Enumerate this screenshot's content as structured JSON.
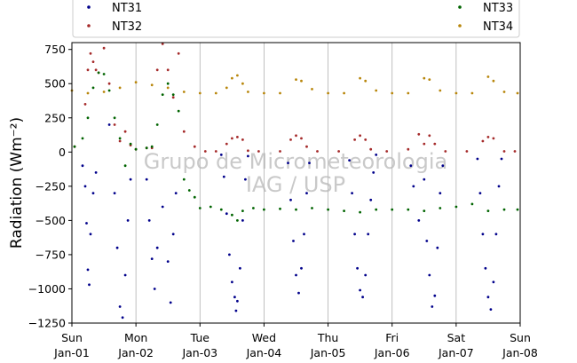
{
  "chart_data": {
    "type": "scatter",
    "title": "",
    "xlabel": "",
    "ylabel": "Radiation (Wm⁻²)",
    "ylim": [
      -1250,
      800
    ],
    "yticks": [
      -1250,
      -1000,
      -750,
      -500,
      -250,
      0,
      250,
      500,
      750
    ],
    "yticklabels": [
      "−1250",
      "−1000",
      "−750",
      "−500",
      "−250",
      "0",
      "250",
      "500",
      "750"
    ],
    "xlim": [
      "2023-01-01",
      "2023-01-08"
    ],
    "xticks": [
      {
        "day": "Sun",
        "date": "Jan-01"
      },
      {
        "day": "Mon",
        "date": "Jan-02"
      },
      {
        "day": "Tue",
        "date": "Jan-03"
      },
      {
        "day": "Wed",
        "date": "Jan-04"
      },
      {
        "day": "Thu",
        "date": "Jan-05"
      },
      {
        "day": "Fri",
        "date": "Jan-06"
      },
      {
        "day": "Sat",
        "date": "Jan-07"
      },
      {
        "day": "Sun",
        "date": "Jan-08"
      }
    ],
    "grid": "vertical",
    "legend_placement": "top",
    "watermark": [
      "Grupo de Micrometeorologia",
      "IAG / USP"
    ],
    "series": [
      {
        "name": "NT31",
        "color": "#00008b",
        "points": [
          [
            "2023-01-01T04:00",
            -100
          ],
          [
            "2023-01-01T05:00",
            -250
          ],
          [
            "2023-01-01T05:30",
            -520
          ],
          [
            "2023-01-01T06:00",
            -860
          ],
          [
            "2023-01-01T06:30",
            -970
          ],
          [
            "2023-01-01T07:00",
            -600
          ],
          [
            "2023-01-01T08:00",
            -300
          ],
          [
            "2023-01-01T09:00",
            -150
          ],
          [
            "2023-01-01T14:00",
            200
          ],
          [
            "2023-01-01T16:00",
            -300
          ],
          [
            "2023-01-01T17:00",
            -700
          ],
          [
            "2023-01-01T18:00",
            -1130
          ],
          [
            "2023-01-01T19:00",
            -1210
          ],
          [
            "2023-01-01T20:00",
            -900
          ],
          [
            "2023-01-01T21:00",
            -500
          ],
          [
            "2023-01-01T22:00",
            -200
          ],
          [
            "2023-01-02T04:00",
            -200
          ],
          [
            "2023-01-02T05:00",
            -500
          ],
          [
            "2023-01-02T06:00",
            -780
          ],
          [
            "2023-01-02T07:00",
            -1000
          ],
          [
            "2023-01-02T08:00",
            -700
          ],
          [
            "2023-01-02T10:00",
            -400
          ],
          [
            "2023-01-02T12:00",
            -800
          ],
          [
            "2023-01-02T13:00",
            -1100
          ],
          [
            "2023-01-02T14:00",
            -600
          ],
          [
            "2023-01-02T15:00",
            -300
          ],
          [
            "2023-01-03T08:00",
            -20
          ],
          [
            "2023-01-03T09:00",
            -180
          ],
          [
            "2023-01-03T10:00",
            -450
          ],
          [
            "2023-01-03T11:00",
            -750
          ],
          [
            "2023-01-03T12:00",
            -950
          ],
          [
            "2023-01-03T13:00",
            -1060
          ],
          [
            "2023-01-03T13:30",
            -1160
          ],
          [
            "2023-01-03T14:00",
            -1090
          ],
          [
            "2023-01-03T15:00",
            -850
          ],
          [
            "2023-01-03T16:00",
            -500
          ],
          [
            "2023-01-03T17:00",
            -200
          ],
          [
            "2023-01-03T18:00",
            -30
          ],
          [
            "2023-01-04T09:00",
            -80
          ],
          [
            "2023-01-04T10:00",
            -350
          ],
          [
            "2023-01-04T11:00",
            -650
          ],
          [
            "2023-01-04T12:00",
            -900
          ],
          [
            "2023-01-04T13:00",
            -1030
          ],
          [
            "2023-01-04T14:00",
            -850
          ],
          [
            "2023-01-04T15:00",
            -600
          ],
          [
            "2023-01-04T16:00",
            -300
          ],
          [
            "2023-01-04T17:00",
            -80
          ],
          [
            "2023-01-05T08:00",
            -60
          ],
          [
            "2023-01-05T09:00",
            -300
          ],
          [
            "2023-01-05T10:00",
            -600
          ],
          [
            "2023-01-05T11:00",
            -850
          ],
          [
            "2023-01-05T12:00",
            -1010
          ],
          [
            "2023-01-05T13:00",
            -1060
          ],
          [
            "2023-01-05T14:00",
            -900
          ],
          [
            "2023-01-05T15:00",
            -600
          ],
          [
            "2023-01-05T16:00",
            -350
          ],
          [
            "2023-01-05T17:00",
            -150
          ],
          [
            "2023-01-05T18:00",
            -20
          ],
          [
            "2023-01-06T07:00",
            -100
          ],
          [
            "2023-01-06T08:00",
            -250
          ],
          [
            "2023-01-06T10:00",
            -500
          ],
          [
            "2023-01-06T12:00",
            -200
          ],
          [
            "2023-01-06T13:00",
            -650
          ],
          [
            "2023-01-06T14:00",
            -900
          ],
          [
            "2023-01-06T15:00",
            -1130
          ],
          [
            "2023-01-06T16:00",
            -1050
          ],
          [
            "2023-01-06T17:00",
            -700
          ],
          [
            "2023-01-06T18:00",
            -300
          ],
          [
            "2023-01-06T19:00",
            -100
          ],
          [
            "2023-01-07T08:00",
            -50
          ],
          [
            "2023-01-07T09:00",
            -300
          ],
          [
            "2023-01-07T10:00",
            -600
          ],
          [
            "2023-01-07T11:00",
            -850
          ],
          [
            "2023-01-07T12:00",
            -1060
          ],
          [
            "2023-01-07T13:00",
            -1150
          ],
          [
            "2023-01-07T14:00",
            -950
          ],
          [
            "2023-01-07T15:00",
            -600
          ],
          [
            "2023-01-07T16:00",
            -250
          ],
          [
            "2023-01-07T17:00",
            -50
          ]
        ]
      },
      {
        "name": "NT32",
        "color": "#a52a2a",
        "points": [
          [
            "2023-01-01T01:00",
            40
          ],
          [
            "2023-01-01T05:00",
            350
          ],
          [
            "2023-01-01T06:00",
            600
          ],
          [
            "2023-01-01T07:00",
            720
          ],
          [
            "2023-01-01T08:00",
            660
          ],
          [
            "2023-01-01T09:00",
            600
          ],
          [
            "2023-01-01T10:00",
            580
          ],
          [
            "2023-01-01T12:00",
            760
          ],
          [
            "2023-01-01T14:00",
            500
          ],
          [
            "2023-01-01T16:00",
            200
          ],
          [
            "2023-01-01T18:00",
            80
          ],
          [
            "2023-01-01T20:00",
            150
          ],
          [
            "2023-01-01T22:00",
            50
          ],
          [
            "2023-01-02T00:00",
            20
          ],
          [
            "2023-01-02T04:00",
            30
          ],
          [
            "2023-01-02T06:00",
            30
          ],
          [
            "2023-01-02T08:00",
            600
          ],
          [
            "2023-01-02T10:00",
            790
          ],
          [
            "2023-01-02T12:00",
            600
          ],
          [
            "2023-01-02T14:00",
            400
          ],
          [
            "2023-01-02T16:00",
            720
          ],
          [
            "2023-01-02T18:00",
            150
          ],
          [
            "2023-01-02T22:00",
            40
          ],
          [
            "2023-01-03T02:00",
            5
          ],
          [
            "2023-01-03T06:00",
            5
          ],
          [
            "2023-01-03T10:00",
            60
          ],
          [
            "2023-01-03T12:00",
            100
          ],
          [
            "2023-01-03T14:00",
            110
          ],
          [
            "2023-01-03T16:00",
            90
          ],
          [
            "2023-01-03T18:00",
            10
          ],
          [
            "2023-01-03T22:00",
            5
          ],
          [
            "2023-01-04T06:00",
            5
          ],
          [
            "2023-01-04T10:00",
            90
          ],
          [
            "2023-01-04T12:00",
            120
          ],
          [
            "2023-01-04T14:00",
            100
          ],
          [
            "2023-01-04T16:00",
            40
          ],
          [
            "2023-01-04T20:00",
            5
          ],
          [
            "2023-01-05T04:00",
            5
          ],
          [
            "2023-01-05T10:00",
            90
          ],
          [
            "2023-01-05T12:00",
            120
          ],
          [
            "2023-01-05T14:00",
            90
          ],
          [
            "2023-01-05T16:00",
            20
          ],
          [
            "2023-01-05T22:00",
            5
          ],
          [
            "2023-01-06T06:00",
            20
          ],
          [
            "2023-01-06T10:00",
            130
          ],
          [
            "2023-01-06T12:00",
            60
          ],
          [
            "2023-01-06T14:00",
            120
          ],
          [
            "2023-01-06T16:00",
            60
          ],
          [
            "2023-01-06T20:00",
            5
          ],
          [
            "2023-01-07T04:00",
            5
          ],
          [
            "2023-01-07T10:00",
            80
          ],
          [
            "2023-01-07T12:00",
            110
          ],
          [
            "2023-01-07T14:00",
            100
          ],
          [
            "2023-01-07T18:00",
            5
          ],
          [
            "2023-01-07T22:00",
            5
          ]
        ]
      },
      {
        "name": "NT33",
        "color": "#006400",
        "points": [
          [
            "2023-01-01T01:00",
            40
          ],
          [
            "2023-01-01T04:00",
            100
          ],
          [
            "2023-01-01T06:00",
            250
          ],
          [
            "2023-01-01T08:00",
            470
          ],
          [
            "2023-01-01T10:00",
            580
          ],
          [
            "2023-01-01T12:00",
            570
          ],
          [
            "2023-01-01T14:00",
            450
          ],
          [
            "2023-01-01T16:00",
            250
          ],
          [
            "2023-01-01T18:00",
            100
          ],
          [
            "2023-01-01T20:00",
            -100
          ],
          [
            "2023-01-01T22:00",
            60
          ],
          [
            "2023-01-02T00:00",
            20
          ],
          [
            "2023-01-02T04:00",
            30
          ],
          [
            "2023-01-02T06:00",
            40
          ],
          [
            "2023-01-02T08:00",
            200
          ],
          [
            "2023-01-02T10:00",
            420
          ],
          [
            "2023-01-02T12:00",
            500
          ],
          [
            "2023-01-02T14:00",
            420
          ],
          [
            "2023-01-02T16:00",
            300
          ],
          [
            "2023-01-02T18:00",
            -200
          ],
          [
            "2023-01-02T20:00",
            -280
          ],
          [
            "2023-01-02T22:00",
            -330
          ],
          [
            "2023-01-03T00:00",
            -410
          ],
          [
            "2023-01-03T04:00",
            -400
          ],
          [
            "2023-01-03T08:00",
            -420
          ],
          [
            "2023-01-03T12:00",
            -460
          ],
          [
            "2023-01-03T14:00",
            -500
          ],
          [
            "2023-01-03T16:00",
            -430
          ],
          [
            "2023-01-03T20:00",
            -410
          ],
          [
            "2023-01-04T00:00",
            -420
          ],
          [
            "2023-01-04T06:00",
            -415
          ],
          [
            "2023-01-04T12:00",
            -420
          ],
          [
            "2023-01-04T18:00",
            -410
          ],
          [
            "2023-01-05T00:00",
            -420
          ],
          [
            "2023-01-05T06:00",
            -430
          ],
          [
            "2023-01-05T12:00",
            -440
          ],
          [
            "2023-01-05T18:00",
            -420
          ],
          [
            "2023-01-06T00:00",
            -420
          ],
          [
            "2023-01-06T06:00",
            -420
          ],
          [
            "2023-01-06T12:00",
            -430
          ],
          [
            "2023-01-06T18:00",
            -410
          ],
          [
            "2023-01-07T00:00",
            -400
          ],
          [
            "2023-01-07T06:00",
            -380
          ],
          [
            "2023-01-07T12:00",
            -430
          ],
          [
            "2023-01-07T18:00",
            -420
          ],
          [
            "2023-01-07T23:00",
            -420
          ]
        ]
      },
      {
        "name": "NT34",
        "color": "#b8860b",
        "points": [
          [
            "2023-01-01T00:00",
            450
          ],
          [
            "2023-01-01T06:00",
            430
          ],
          [
            "2023-01-01T12:00",
            440
          ],
          [
            "2023-01-01T18:00",
            470
          ],
          [
            "2023-01-02T00:00",
            510
          ],
          [
            "2023-01-02T06:00",
            490
          ],
          [
            "2023-01-02T12:00",
            470
          ],
          [
            "2023-01-02T18:00",
            440
          ],
          [
            "2023-01-03T00:00",
            430
          ],
          [
            "2023-01-03T06:00",
            430
          ],
          [
            "2023-01-03T10:00",
            470
          ],
          [
            "2023-01-03T12:00",
            540
          ],
          [
            "2023-01-03T14:00",
            560
          ],
          [
            "2023-01-03T16:00",
            500
          ],
          [
            "2023-01-03T18:00",
            440
          ],
          [
            "2023-01-04T00:00",
            430
          ],
          [
            "2023-01-04T06:00",
            430
          ],
          [
            "2023-01-04T12:00",
            530
          ],
          [
            "2023-01-04T14:00",
            520
          ],
          [
            "2023-01-04T18:00",
            460
          ],
          [
            "2023-01-05T00:00",
            430
          ],
          [
            "2023-01-05T06:00",
            430
          ],
          [
            "2023-01-05T12:00",
            540
          ],
          [
            "2023-01-05T14:00",
            520
          ],
          [
            "2023-01-05T18:00",
            450
          ],
          [
            "2023-01-06T00:00",
            430
          ],
          [
            "2023-01-06T06:00",
            430
          ],
          [
            "2023-01-06T12:00",
            540
          ],
          [
            "2023-01-06T14:00",
            530
          ],
          [
            "2023-01-06T18:00",
            450
          ],
          [
            "2023-01-07T00:00",
            430
          ],
          [
            "2023-01-07T06:00",
            430
          ],
          [
            "2023-01-07T12:00",
            550
          ],
          [
            "2023-01-07T14:00",
            520
          ],
          [
            "2023-01-07T18:00",
            440
          ],
          [
            "2023-01-07T23:00",
            430
          ]
        ]
      }
    ]
  }
}
